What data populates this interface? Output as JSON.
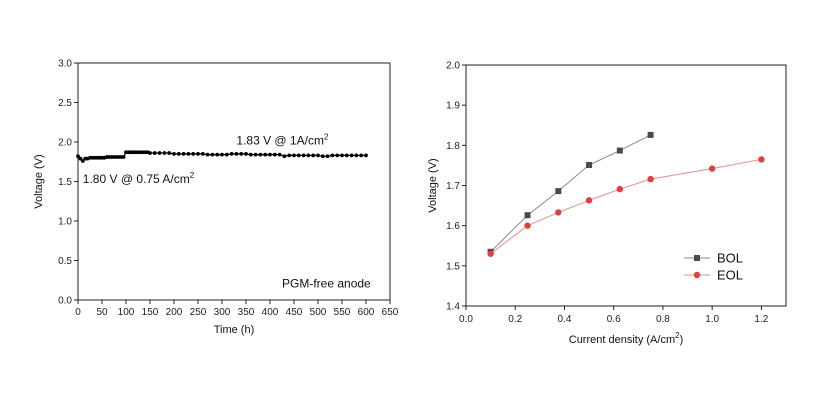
{
  "chart_data": [
    {
      "type": "line",
      "xlabel": "Time (h)",
      "ylabel": "Voltage (V)",
      "xlim": [
        0,
        650
      ],
      "ylim": [
        0.0,
        3.0
      ],
      "xticks": [
        0,
        50,
        100,
        150,
        200,
        250,
        300,
        350,
        400,
        450,
        500,
        550,
        600,
        650
      ],
      "yticks": [
        "0.0",
        "0.5",
        "1.0",
        "1.5",
        "2.0",
        "2.5",
        "3.0"
      ],
      "series": [
        {
          "color": "#000000",
          "marker": "circle",
          "x": [
            0,
            5,
            10,
            15,
            20,
            25,
            30,
            35,
            40,
            45,
            50,
            55,
            60,
            65,
            70,
            75,
            80,
            85,
            90,
            95,
            100,
            105,
            110,
            115,
            120,
            125,
            130,
            135,
            140,
            145,
            150,
            160,
            170,
            180,
            190,
            200,
            210,
            220,
            230,
            240,
            250,
            260,
            270,
            280,
            290,
            300,
            310,
            320,
            330,
            340,
            350,
            360,
            370,
            380,
            390,
            400,
            410,
            420,
            430,
            440,
            450,
            460,
            470,
            480,
            490,
            500,
            510,
            520,
            530,
            540,
            550,
            560,
            570,
            580,
            590,
            600
          ],
          "y": [
            1.82,
            1.79,
            1.76,
            1.79,
            1.79,
            1.8,
            1.8,
            1.8,
            1.8,
            1.8,
            1.8,
            1.8,
            1.81,
            1.81,
            1.81,
            1.81,
            1.81,
            1.81,
            1.81,
            1.81,
            1.87,
            1.87,
            1.87,
            1.87,
            1.87,
            1.87,
            1.87,
            1.87,
            1.87,
            1.87,
            1.86,
            1.86,
            1.86,
            1.86,
            1.86,
            1.85,
            1.85,
            1.85,
            1.85,
            1.85,
            1.85,
            1.85,
            1.84,
            1.84,
            1.84,
            1.84,
            1.84,
            1.85,
            1.85,
            1.85,
            1.85,
            1.84,
            1.84,
            1.84,
            1.84,
            1.84,
            1.84,
            1.84,
            1.82,
            1.83,
            1.83,
            1.83,
            1.83,
            1.83,
            1.83,
            1.83,
            1.82,
            1.82,
            1.83,
            1.83,
            1.83,
            1.83,
            1.83,
            1.83,
            1.83,
            1.83
          ]
        }
      ],
      "annotations": [
        {
          "text": "1.83 V @ 1A/cm",
          "sup": "2",
          "x": 330,
          "y": 1.97
        },
        {
          "text": "1.80 V @ 0.75 A/cm",
          "sup": "2",
          "x": 10,
          "y": 1.48
        },
        {
          "text": "PGM-free anode",
          "sup": "",
          "x": 425,
          "y": 0.16
        }
      ]
    },
    {
      "type": "line",
      "xlabel": "Current density (A/cm",
      "xlabel_sup": "2",
      "xlabel_end": ")",
      "ylabel": "Voltage (V)",
      "xlim": [
        0.0,
        1.3
      ],
      "ylim": [
        1.4,
        2.0
      ],
      "xticks": [
        "0.0",
        "0.2",
        "0.4",
        "0.6",
        "0.8",
        "1.0",
        "1.2"
      ],
      "yticks": [
        "1.4",
        "1.5",
        "1.6",
        "1.7",
        "1.8",
        "1.9",
        "2.0"
      ],
      "legend": "bottom-right",
      "series": [
        {
          "name": "BOL",
          "color": "#4a4a4a",
          "line_color": "#8a8a8a",
          "marker": "square",
          "x": [
            0.1,
            0.25,
            0.375,
            0.5,
            0.625,
            0.75
          ],
          "y": [
            1.535,
            1.626,
            1.686,
            1.751,
            1.787,
            1.826
          ]
        },
        {
          "name": "EOL",
          "color": "#e04040",
          "line_color": "#e09090",
          "marker": "circle",
          "x": [
            0.1,
            0.25,
            0.375,
            0.5,
            0.625,
            0.75,
            1.0,
            1.2
          ],
          "y": [
            1.53,
            1.6,
            1.633,
            1.663,
            1.691,
            1.716,
            1.742,
            1.765
          ]
        }
      ]
    }
  ]
}
